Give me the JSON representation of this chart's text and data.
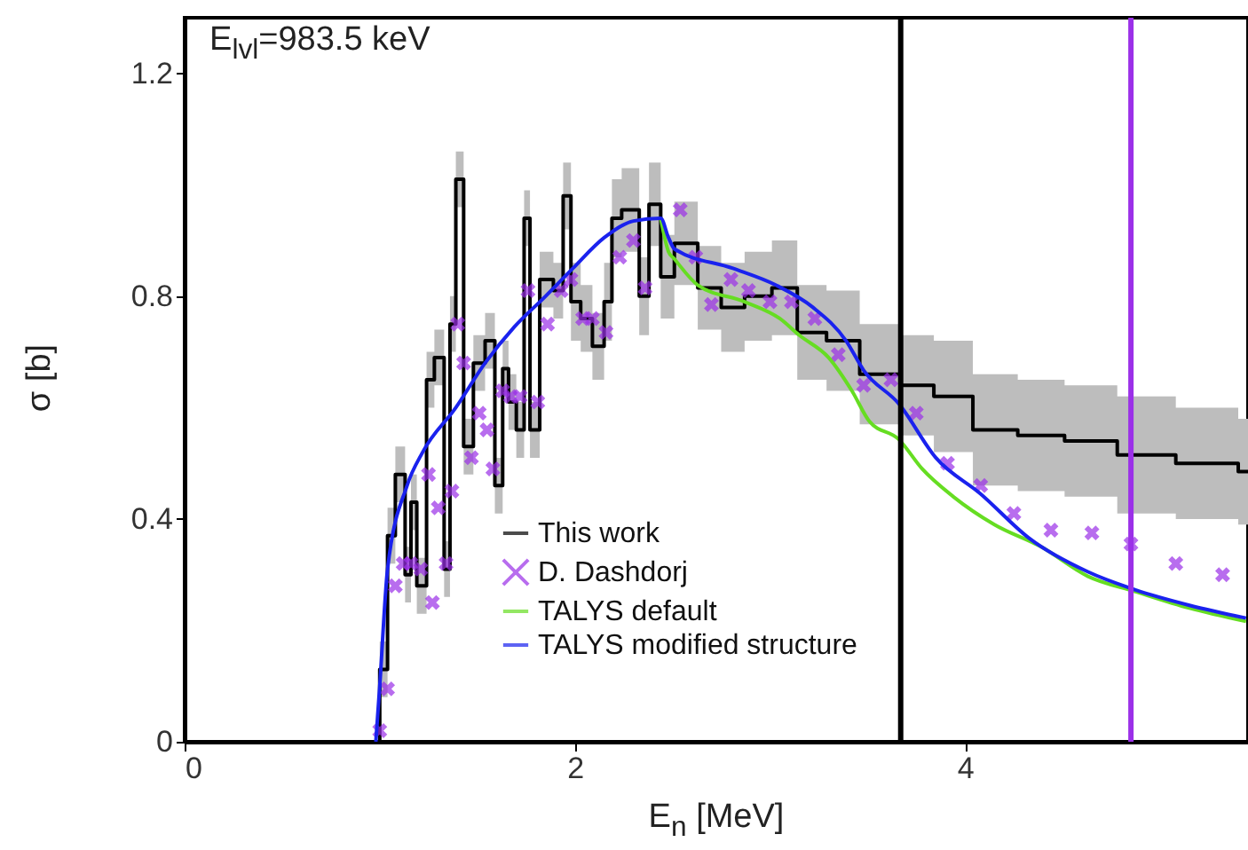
{
  "chart_data": {
    "type": "line",
    "xlabel": "E$_{n}$ [MeV]",
    "ylabel": "σ [b]",
    "annotations": [
      "E$_{lvl}$=983.5 keV"
    ],
    "xlim": [
      0,
      5.45
    ],
    "ylim": [
      0,
      1.3
    ],
    "xticks": [
      0,
      2,
      4
    ],
    "yticks": [
      0,
      0.4,
      0.8,
      1.2
    ],
    "grid": false,
    "legend": "bottom right",
    "ref_lines": [
      {
        "axis": "x",
        "value": 3.67,
        "color": "#000000"
      },
      {
        "axis": "x",
        "value": 4.85,
        "color": "#9b30e8"
      }
    ],
    "series": [
      {
        "name": "This work",
        "type": "step",
        "color": "#000000",
        "x": [
          0.98,
          1.0,
          1.04,
          1.08,
          1.13,
          1.16,
          1.19,
          1.24,
          1.28,
          1.33,
          1.36,
          1.39,
          1.43,
          1.48,
          1.54,
          1.59,
          1.63,
          1.66,
          1.7,
          1.74,
          1.77,
          1.82,
          1.89,
          1.94,
          1.98,
          2.03,
          2.09,
          2.15,
          2.19,
          2.24,
          2.33,
          2.38,
          2.44,
          2.51,
          2.63,
          2.75,
          2.87,
          3.01,
          3.14,
          3.29,
          3.46,
          3.67,
          3.84,
          4.04,
          4.27,
          4.51,
          4.78,
          5.08,
          5.4,
          5.45
        ],
        "values": [
          0,
          0.13,
          0.37,
          0.48,
          0.3,
          0.43,
          0.28,
          0.65,
          0.69,
          0.31,
          0.75,
          1.01,
          0.53,
          0.68,
          0.72,
          0.46,
          0.67,
          0.61,
          0.56,
          0.94,
          0.56,
          0.83,
          0.81,
          0.98,
          0.79,
          0.76,
          0.71,
          0.79,
          0.94,
          0.955,
          0.8,
          0.965,
          0.835,
          0.895,
          0.815,
          0.78,
          0.8,
          0.815,
          0.735,
          0.72,
          0.66,
          0.64,
          0.62,
          0.56,
          0.55,
          0.54,
          0.515,
          0.5,
          0.485,
          0.485
        ],
        "lower": [
          0,
          0.08,
          0.32,
          0.43,
          0.25,
          0.38,
          0.23,
          0.6,
          0.64,
          0.26,
          0.7,
          0.96,
          0.48,
          0.63,
          0.67,
          0.41,
          0.62,
          0.56,
          0.51,
          0.89,
          0.51,
          0.78,
          0.76,
          0.92,
          0.72,
          0.7,
          0.65,
          0.72,
          0.87,
          0.88,
          0.73,
          0.89,
          0.76,
          0.82,
          0.74,
          0.7,
          0.72,
          0.73,
          0.65,
          0.63,
          0.57,
          0.55,
          0.52,
          0.46,
          0.45,
          0.44,
          0.41,
          0.4,
          0.39,
          0.39
        ],
        "upper": [
          0,
          0.18,
          0.42,
          0.53,
          0.35,
          0.48,
          0.33,
          0.7,
          0.74,
          0.36,
          0.8,
          1.06,
          0.58,
          0.73,
          0.77,
          0.51,
          0.72,
          0.66,
          0.61,
          0.99,
          0.61,
          0.88,
          0.86,
          1.04,
          0.86,
          0.82,
          0.77,
          0.86,
          1.01,
          1.03,
          0.87,
          1.04,
          0.91,
          0.97,
          0.89,
          0.86,
          0.88,
          0.9,
          0.82,
          0.81,
          0.75,
          0.73,
          0.72,
          0.66,
          0.65,
          0.64,
          0.62,
          0.6,
          0.58,
          0.58
        ]
      },
      {
        "name": "D. Dashdorj",
        "type": "scatter",
        "marker": "cross",
        "color": "#9b30e8",
        "x": [
          1.0,
          1.04,
          1.08,
          1.12,
          1.16,
          1.21,
          1.25,
          1.27,
          1.3,
          1.34,
          1.37,
          1.4,
          1.43,
          1.47,
          1.51,
          1.55,
          1.58,
          1.63,
          1.67,
          1.72,
          1.76,
          1.81,
          1.86,
          1.93,
          1.98,
          2.04,
          2.09,
          2.16,
          2.23,
          2.3,
          2.36,
          2.54,
          2.62,
          2.7,
          2.8,
          2.89,
          3.0,
          3.11,
          3.23,
          3.35,
          3.48,
          3.62,
          3.75,
          3.91,
          4.08,
          4.25,
          4.44,
          4.65,
          4.85,
          5.08,
          5.32
        ],
        "values": [
          0.02,
          0.095,
          0.28,
          0.32,
          0.32,
          0.31,
          0.48,
          0.25,
          0.42,
          0.32,
          0.45,
          0.75,
          0.68,
          0.51,
          0.59,
          0.56,
          0.49,
          0.63,
          0.62,
          0.62,
          0.81,
          0.61,
          0.75,
          0.81,
          0.83,
          0.76,
          0.76,
          0.735,
          0.87,
          0.9,
          0.815,
          0.955,
          0.87,
          0.785,
          0.83,
          0.81,
          0.79,
          0.79,
          0.76,
          0.695,
          0.64,
          0.65,
          0.59,
          0.5,
          0.46,
          0.41,
          0.38,
          0.375,
          0.355,
          0.32,
          0.3
        ]
      },
      {
        "name": "TALYS default",
        "type": "line",
        "color": "#66dd22",
        "x": [
          2.44,
          2.48,
          2.51,
          2.63,
          2.87,
          3.05,
          3.15,
          3.3,
          3.42,
          3.51,
          3.66,
          3.78,
          3.94,
          4.15,
          4.39,
          4.63,
          4.87,
          5.15,
          5.44
        ],
        "values": [
          0.94,
          0.88,
          0.867,
          0.82,
          0.79,
          0.76,
          0.73,
          0.69,
          0.63,
          0.575,
          0.543,
          0.49,
          0.44,
          0.39,
          0.35,
          0.297,
          0.27,
          0.24,
          0.216
        ]
      },
      {
        "name": "TALYS modified structure",
        "type": "line",
        "color": "#1a22ee",
        "x": [
          0.98,
          1.0,
          1.04,
          1.14,
          1.22,
          1.39,
          1.54,
          1.69,
          1.85,
          1.99,
          2.15,
          2.3,
          2.44,
          2.48,
          2.51,
          2.81,
          3.03,
          3.22,
          3.39,
          3.48,
          3.66,
          3.85,
          4.08,
          4.33,
          4.63,
          4.87,
          5.15,
          5.44
        ],
        "values": [
          0,
          0.1,
          0.31,
          0.46,
          0.52,
          0.6,
          0.68,
          0.745,
          0.8,
          0.85,
          0.905,
          0.935,
          0.94,
          0.905,
          0.885,
          0.85,
          0.82,
          0.78,
          0.72,
          0.667,
          0.607,
          0.51,
          0.445,
          0.365,
          0.305,
          0.273,
          0.245,
          0.222
        ]
      }
    ]
  }
}
